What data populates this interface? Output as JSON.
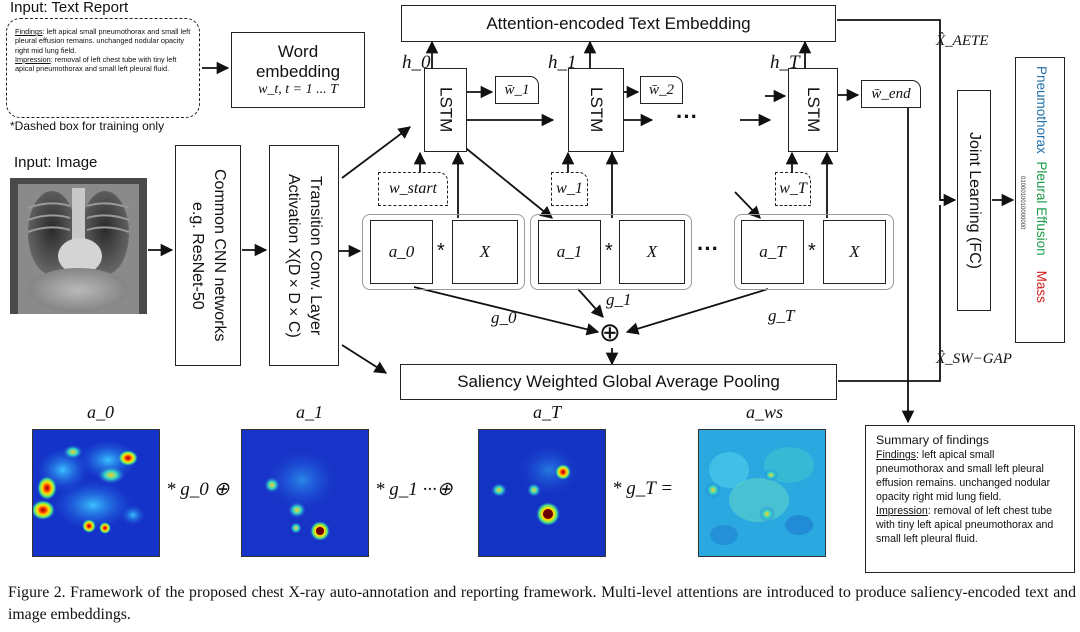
{
  "input_text": {
    "title": "Input: Text Report",
    "findings_label": "Findings",
    "findings_text": ": left apical small pneumothorax and small left pleural effusion remains. unchanged nodular opacity right mid lung field.",
    "impression_label": "Impression",
    "impression_text": ": removal of left chest tube with tiny left apical pneumothorax and small left pleural fluid.",
    "note": "*Dashed box for training only"
  },
  "word_embedding": {
    "line1": "Word",
    "line2": "embedding",
    "formula": "w_t, t = 1 ... T"
  },
  "input_image": {
    "title": "Input: Image"
  },
  "cnn_box": {
    "line1": "Common CNN networks",
    "line2": "e.g. ResNet-50"
  },
  "transition_box": {
    "line1": "Transition Conv. Layer",
    "line2": "Activation X(D×D×C)"
  },
  "attention_box": "Attention-encoded Text Embedding",
  "saliency_box": "Saliency Weighted Global Average Pooling",
  "lstm": {
    "label": "LSTM",
    "hidden": [
      "h_0",
      "h_1",
      "h_T"
    ],
    "outputs": [
      "w̄_1",
      "w̄_2",
      "w̄_end"
    ],
    "inputs": [
      "w_start",
      "w_1",
      "w_T"
    ],
    "ellipsis": "···"
  },
  "attention": {
    "maps": [
      "a_0",
      "a_1",
      "a_T"
    ],
    "feature": "X",
    "times": "*",
    "gates": [
      "g_0",
      "g_1",
      "g_T"
    ],
    "oplus": "⊕"
  },
  "outputs": {
    "aete": "X̂_AETE",
    "swgap": "X̂_SW−GAP"
  },
  "joint_learning": "Joint Learning (FC)",
  "labels": {
    "pneumothorax": "Pneumothorax",
    "pleural": "Pleural Effusion",
    "mass": "Mass",
    "code": "0100010010000000",
    "colors": {
      "pneumothorax": "#1f6fa8",
      "pleural": "#1e9b4a",
      "mass": "#d32020"
    }
  },
  "heatmaps": {
    "titles": [
      "a_0",
      "a_1",
      "a_T",
      "a_ws"
    ],
    "ops": [
      "* g_0 ⊕",
      "* g_1 ···⊕",
      "* g_T ="
    ]
  },
  "summary": {
    "title": "Summary of findings",
    "findings_label": "Findings",
    "findings_text": ": left apical small pneumothorax and small left pleural effusion remains. unchanged nodular opacity right mid lung field.",
    "impression_label": "Impression",
    "impression_text": ": removal of left chest tube with tiny left apical pneumothorax and small left pleural fluid."
  },
  "caption": "Figure 2. Framework of the proposed chest X-ray auto-annotation and reporting framework.  Multi-level attentions are introduced to produce saliency-encoded text and image embeddings."
}
